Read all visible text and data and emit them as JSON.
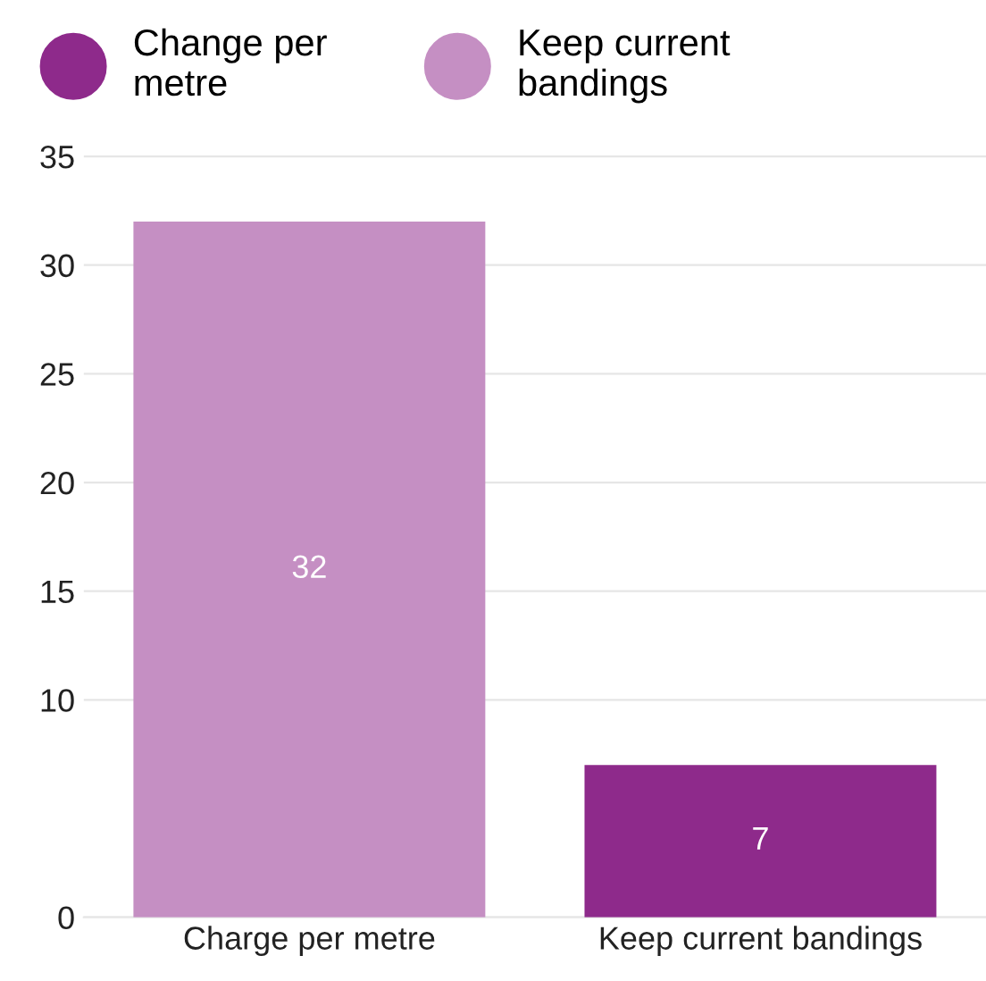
{
  "chart_data": {
    "type": "bar",
    "categories": [
      "Charge per metre",
      "Keep current bandings"
    ],
    "series": [
      {
        "name": "Change per metre",
        "color": "#8e2a8b",
        "values": [
          null,
          7
        ]
      },
      {
        "name": "Keep current bandings",
        "color": "#c58fc3",
        "values": [
          32,
          null
        ]
      }
    ],
    "ylim": [
      0,
      35.2
    ],
    "yticks": [
      0,
      10,
      15,
      20,
      25,
      30,
      35
    ],
    "grid": "y",
    "legend": "top left",
    "data_labels": true
  }
}
